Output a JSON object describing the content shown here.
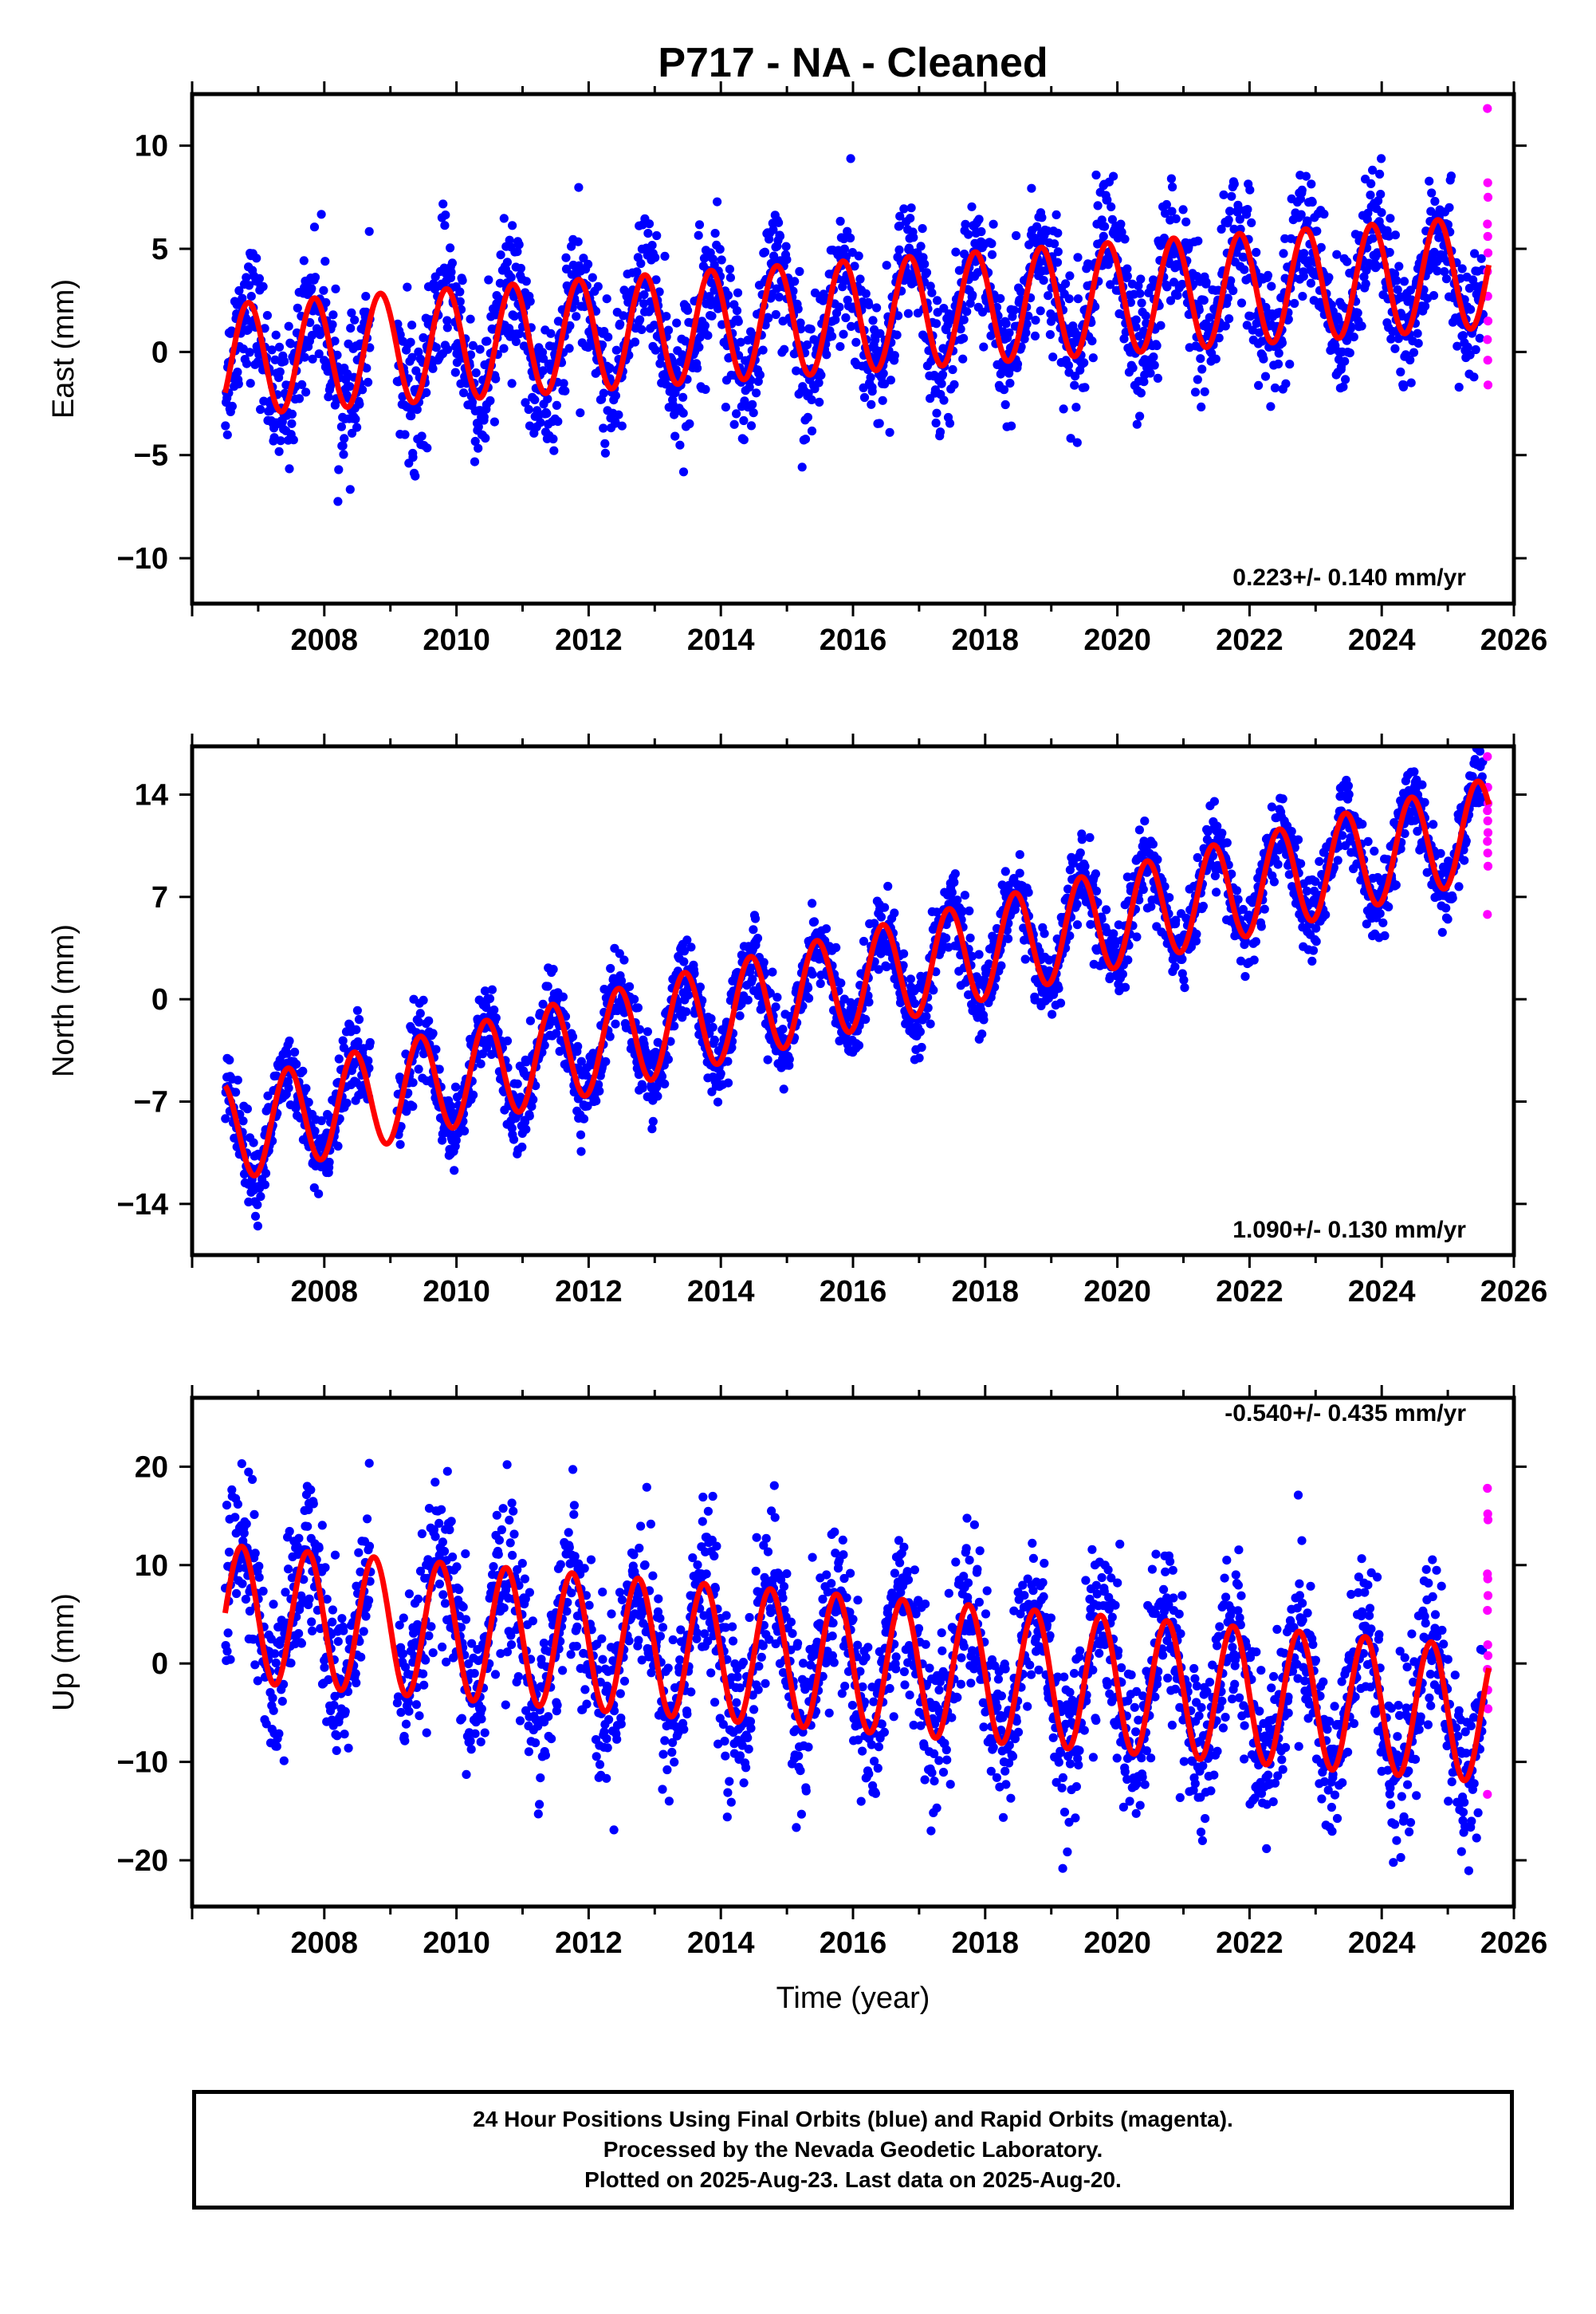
{
  "chart_data": {
    "type": "scatter",
    "title": "P717  - NA - Cleaned",
    "xlabel": "Time (year)",
    "xlim": [
      2006.0,
      2026.0
    ],
    "x_ticks": [
      "2008",
      "2010",
      "2012",
      "2014",
      "2016",
      "2018",
      "2020",
      "2022",
      "2024",
      "2026"
    ],
    "legend": "none",
    "grid": false,
    "series_colors": {
      "final_orbits": "#0000ff",
      "rapid_orbits": "#ff00ff",
      "model_fit": "#ff0000"
    },
    "panels": [
      {
        "name": "east",
        "ylabel": "East (mm)",
        "ylim": [
          -12.2,
          12.5
        ],
        "y_ticks": [
          "10",
          "5",
          "0",
          "−5",
          "−10"
        ],
        "y_tick_values": [
          10,
          5,
          0,
          -5,
          -10
        ],
        "rate_label": "0.223+/- 0.140 mm/yr",
        "fit": {
          "offset": -0.5,
          "slope_mm_per_yr": 0.223,
          "annual_amplitude": 2.7,
          "phase_peak_year": 0.85,
          "gap": [
            2008.7,
            2009.1
          ]
        },
        "scatter_spread_mm": 1.6,
        "rapid_orbit_values": [
          11.8,
          8.2,
          7.5,
          6.2,
          5.6,
          4.8,
          3.9,
          2.7,
          1.5,
          0.6,
          -0.4,
          -1.6
        ]
      },
      {
        "name": "north",
        "ylabel": "North (mm)",
        "ylim": [
          -17.5,
          17.3
        ],
        "y_ticks": [
          "14",
          "7",
          "0",
          "−7",
          "−14"
        ],
        "y_tick_values": [
          14,
          7,
          0,
          -7,
          -14
        ],
        "rate_label": "1.090+/- 0.130 mm/yr",
        "fit": {
          "offset": -9.7,
          "slope_mm_per_yr": 1.09,
          "annual_amplitude": 3.4,
          "phase_peak_year": 0.45,
          "gap": [
            2008.7,
            2009.1
          ]
        },
        "scatter_spread_mm": 1.3,
        "rapid_orbit_values": [
          16.6,
          14.5,
          13.4,
          12.9,
          12.2,
          11.4,
          10.8,
          10.0,
          9.1,
          5.8
        ]
      },
      {
        "name": "up",
        "ylabel": "Up (mm)",
        "ylim": [
          -24.7,
          27.0
        ],
        "y_ticks": [
          "20",
          "10",
          "0",
          "−10",
          "−20"
        ],
        "y_tick_values": [
          20,
          10,
          0,
          -10,
          -20
        ],
        "rate_label": "-0.540+/- 0.435 mm/yr",
        "fit": {
          "offset": 5.4,
          "slope_mm_per_yr": -0.54,
          "annual_amplitude": 6.9,
          "phase_peak_year": 0.75,
          "gap": [
            2008.7,
            2009.1
          ]
        },
        "scatter_spread_mm": 4.2,
        "rapid_orbit_values": [
          17.8,
          15.2,
          14.6,
          9.1,
          8.6,
          6.9,
          5.4,
          1.9,
          0.8,
          -0.6,
          -2.7,
          -4.6,
          -13.3
        ]
      }
    ],
    "data_span": [
      2006.5,
      2025.62
    ]
  },
  "footer": {
    "line1": "24 Hour Positions Using Final Orbits (blue) and Rapid Orbits (magenta).",
    "line2": "Processed by the Nevada Geodetic Laboratory.",
    "line3": "Plotted on 2025-Aug-23. Last data on 2025-Aug-20."
  }
}
